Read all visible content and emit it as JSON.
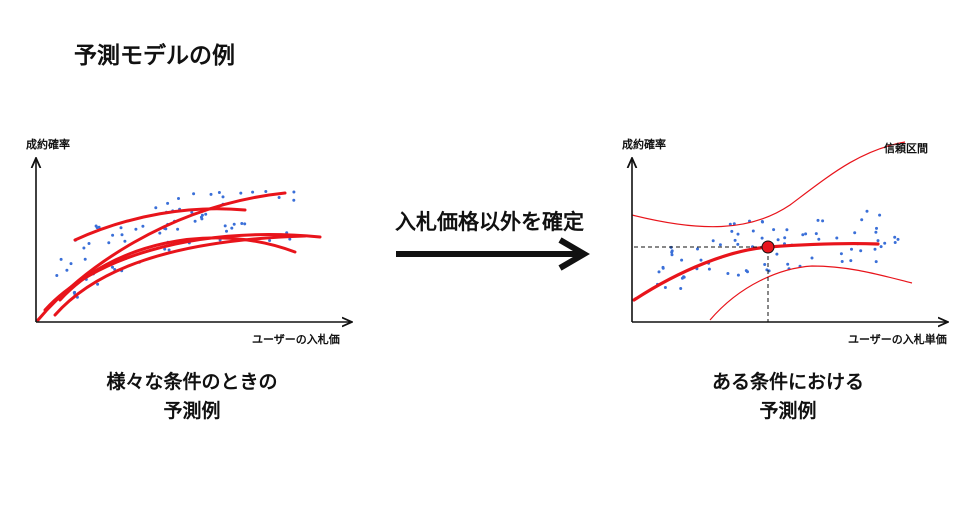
{
  "title": "予測モデルの例",
  "arrow_label": "入札価格以外を確定",
  "left_panel": {
    "ylabel": "成約確率",
    "xlabel": "ユーザーの入札価",
    "caption_line1": "様々な条件のときの",
    "caption_line2": "予測例"
  },
  "right_panel": {
    "ylabel": "成約確率",
    "xlabel": "ユーザーの入札単価",
    "interval_label": "信頼区間",
    "caption_line1": "ある条件における",
    "caption_line2": "予測例"
  },
  "colors": {
    "curve": "#e8141b",
    "point": "#3a6fd8",
    "axis": "#111111",
    "marker": "#e8141b"
  }
}
